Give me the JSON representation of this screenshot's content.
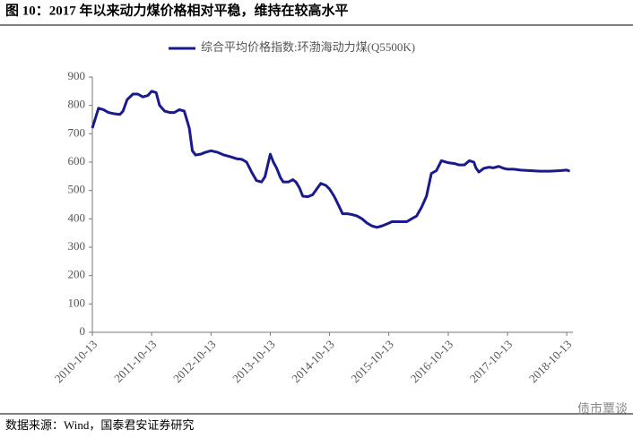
{
  "chart_data": {
    "type": "line",
    "title": "图 10：2017 年以来动力煤价格相对平稳，维持在较高水平",
    "source": "数据来源：Wind，国泰君安证券研究",
    "watermark": "债市覃谈",
    "x": [
      "2010-10-13",
      "2010-11-20",
      "2010-12-20",
      "2011-01-20",
      "2011-03-01",
      "2011-04-01",
      "2011-04-20",
      "2011-05-15",
      "2011-06-20",
      "2011-07-20",
      "2011-08-20",
      "2011-09-20",
      "2011-10-13",
      "2011-11-10",
      "2011-12-01",
      "2012-01-01",
      "2012-02-01",
      "2012-03-01",
      "2012-04-01",
      "2012-05-01",
      "2012-06-01",
      "2012-06-20",
      "2012-07-10",
      "2012-08-10",
      "2012-09-10",
      "2012-10-13",
      "2012-11-20",
      "2013-01-01",
      "2013-02-15",
      "2013-03-20",
      "2013-04-20",
      "2013-05-20",
      "2013-06-20",
      "2013-07-20",
      "2013-08-20",
      "2013-09-10",
      "2013-10-13",
      "2013-11-01",
      "2013-11-20",
      "2013-12-15",
      "2014-01-01",
      "2014-02-01",
      "2014-03-01",
      "2014-03-20",
      "2014-04-10",
      "2014-05-01",
      "2014-06-01",
      "2014-07-01",
      "2014-08-01",
      "2014-08-20",
      "2014-09-20",
      "2014-10-13",
      "2014-11-10",
      "2014-12-10",
      "2015-01-01",
      "2015-02-01",
      "2015-03-01",
      "2015-04-01",
      "2015-05-01",
      "2015-06-01",
      "2015-07-01",
      "2015-08-01",
      "2015-09-01",
      "2015-10-13",
      "2015-11-01",
      "2016-01-01",
      "2016-02-01",
      "2016-03-01",
      "2016-04-01",
      "2016-05-01",
      "2016-06-01",
      "2016-07-01",
      "2016-08-01",
      "2016-09-01",
      "2016-10-13",
      "2016-11-20",
      "2016-12-20",
      "2017-01-20",
      "2017-02-20",
      "2017-03-20",
      "2017-04-01",
      "2017-04-20",
      "2017-05-20",
      "2017-06-20",
      "2017-07-20",
      "2017-08-20",
      "2017-09-20",
      "2017-10-13",
      "2017-11-20",
      "2018-01-01",
      "2018-03-01",
      "2018-05-01",
      "2018-07-01",
      "2018-09-01",
      "2018-10-13",
      "2018-11-01"
    ],
    "series": [
      {
        "name": "综合平均价格指数:环渤海动力煤(Q5500K)",
        "color": "#1a1a8c",
        "values": [
          720,
          790,
          785,
          775,
          770,
          768,
          780,
          820,
          840,
          840,
          830,
          835,
          850,
          845,
          800,
          780,
          775,
          775,
          785,
          780,
          720,
          640,
          625,
          628,
          635,
          640,
          635,
          625,
          618,
          612,
          610,
          600,
          565,
          535,
          530,
          548,
          628,
          600,
          580,
          545,
          530,
          530,
          538,
          530,
          510,
          480,
          478,
          485,
          510,
          525,
          518,
          505,
          480,
          445,
          418,
          418,
          415,
          410,
          400,
          385,
          375,
          370,
          375,
          385,
          390,
          390,
          390,
          400,
          410,
          440,
          480,
          560,
          570,
          605,
          598,
          595,
          590,
          590,
          605,
          600,
          580,
          565,
          578,
          582,
          580,
          585,
          578,
          575,
          575,
          572,
          570,
          568,
          568,
          570,
          572,
          568
        ]
      }
    ],
    "xlim": [
      "2010-10-13",
      "2018-11-20"
    ],
    "xticks": [
      "2010-10-13",
      "2011-10-13",
      "2012-10-13",
      "2013-10-13",
      "2014-10-13",
      "2015-10-13",
      "2016-10-13",
      "2017-10-13",
      "2018-10-13"
    ],
    "ylim": [
      0,
      900
    ],
    "yticks": [
      0,
      100,
      200,
      300,
      400,
      500,
      600,
      700,
      800,
      900
    ],
    "grid": false,
    "legend": "top"
  }
}
